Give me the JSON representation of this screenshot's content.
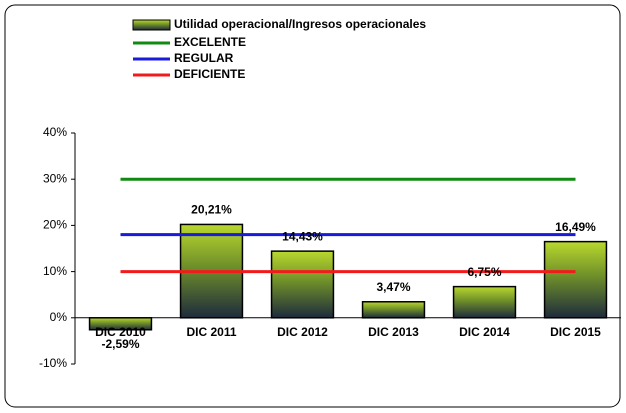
{
  "chart_data": {
    "type": "bar",
    "categories": [
      "DIC 2010",
      "DIC 2011",
      "DIC 2012",
      "DIC 2013",
      "DIC 2014",
      "DIC 2015"
    ],
    "series": [
      {
        "name": "Utilidad operacional/Ingresos operacionales",
        "type": "bar",
        "color": "#b9d82e",
        "values": [
          -2.59,
          20.21,
          14.43,
          3.47,
          6.75,
          16.49
        ],
        "value_labels": [
          "-2,59%",
          "20,21%",
          "14,43%",
          "3,47%",
          "6,75%",
          "16,49%"
        ]
      },
      {
        "name": "EXCELENTE",
        "type": "line",
        "color": "#118a11",
        "values": [
          30,
          30,
          30,
          30,
          30,
          30
        ]
      },
      {
        "name": "REGULAR",
        "type": "line",
        "color": "#1a1adb",
        "values": [
          18,
          18,
          18,
          18,
          18,
          18
        ]
      },
      {
        "name": "DEFICIENTE",
        "type": "line",
        "color": "#f01c1c",
        "values": [
          10,
          10,
          10,
          10,
          10,
          10
        ]
      }
    ],
    "ylim": [
      -10,
      40
    ],
    "yticks": [
      {
        "value": -10,
        "label": "-10%"
      },
      {
        "value": 0,
        "label": "0%"
      },
      {
        "value": 10,
        "label": "10%"
      },
      {
        "value": 20,
        "label": "20%"
      },
      {
        "value": 30,
        "label": "30%"
      },
      {
        "value": 40,
        "label": "40%"
      }
    ]
  }
}
